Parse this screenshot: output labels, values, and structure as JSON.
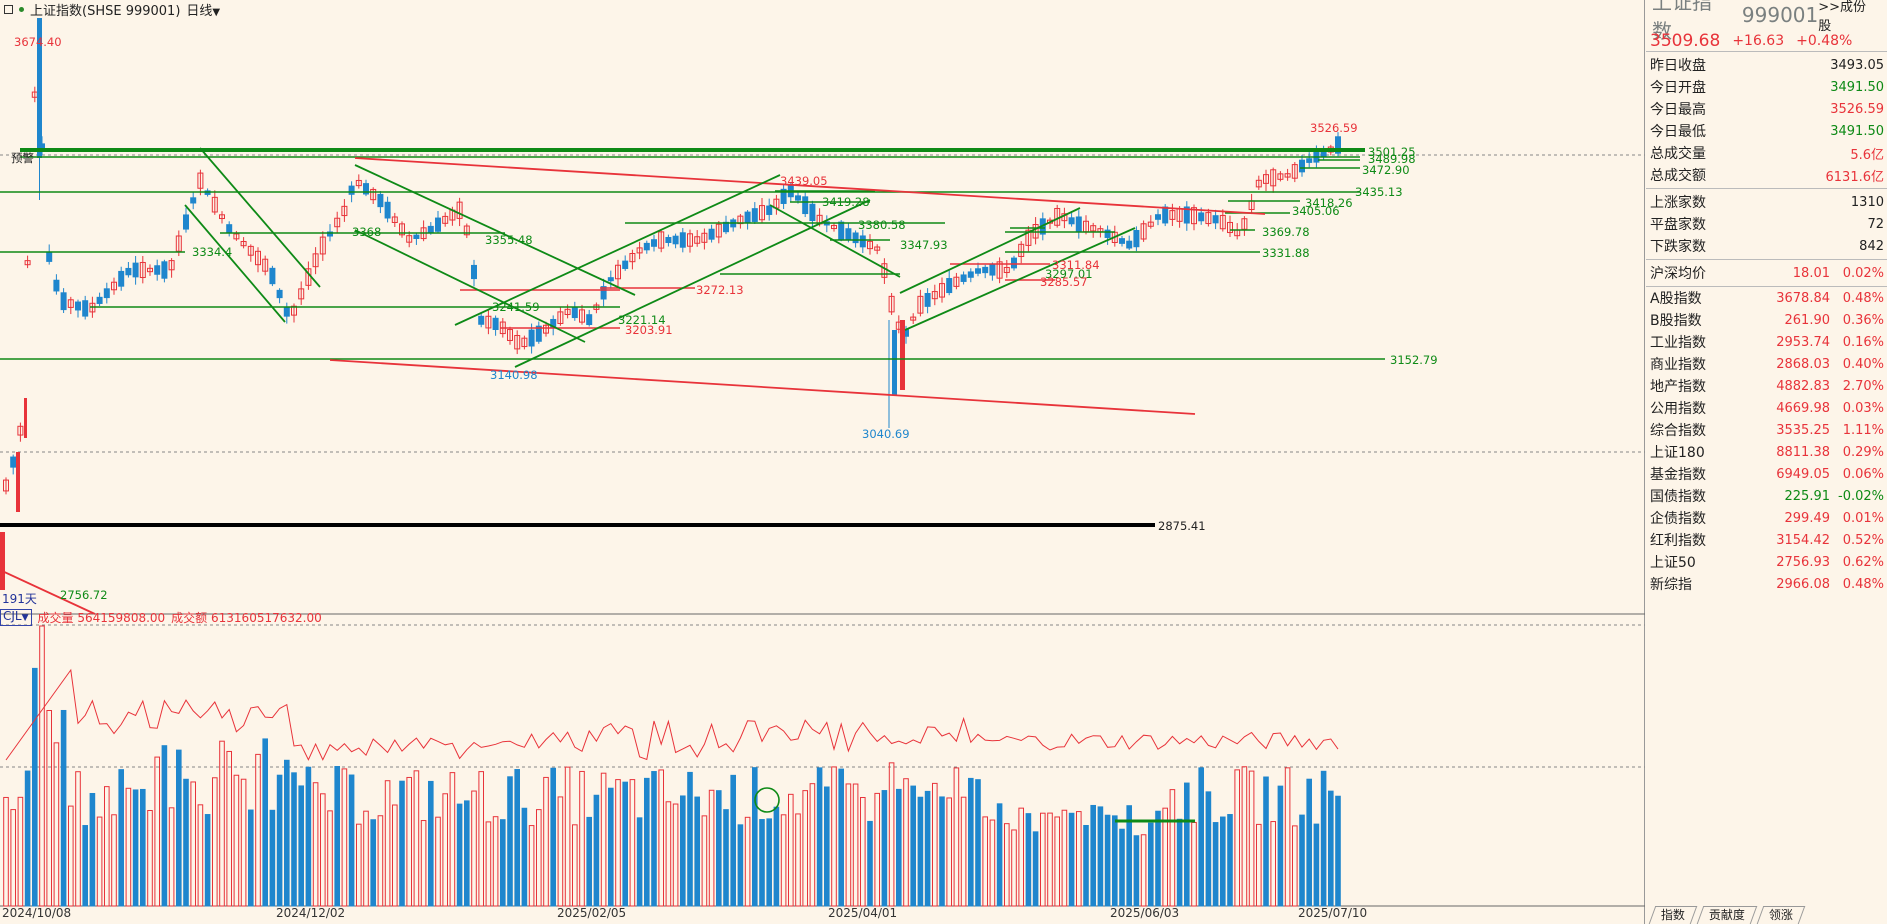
{
  "header": {
    "title": "上证指数(SHSE 999001)",
    "period": "日线"
  },
  "colors": {
    "up": "#e8333a",
    "down": "#1f86cd",
    "support": "#0e8a16",
    "resist": "#e8333a",
    "bg": "#fdf5e9"
  },
  "price_levels": [
    {
      "label": "3674.40",
      "color": "#e8333a"
    },
    {
      "label": "3501.25",
      "color": "#0e8a16"
    },
    {
      "label": "3489.98",
      "color": "#0e8a16"
    },
    {
      "label": "3472.90",
      "color": "#0e8a16"
    },
    {
      "label": "3435.13",
      "color": "#0e8a16"
    },
    {
      "label": "3439.05",
      "color": "#e8333a"
    },
    {
      "label": "3419.28",
      "color": "#0e8a16"
    },
    {
      "label": "3418.26",
      "color": "#0e8a16"
    },
    {
      "label": "3405.06",
      "color": "#0e8a16"
    },
    {
      "label": "3380.58",
      "color": "#0e8a16"
    },
    {
      "label": "3369.78",
      "color": "#0e8a16"
    },
    {
      "label": "3368",
      "color": "#0e8a16"
    },
    {
      "label": "3355.48",
      "color": "#0e8a16"
    },
    {
      "label": "3347.93",
      "color": "#0e8a16"
    },
    {
      "label": "3334.4",
      "color": "#0e8a16"
    },
    {
      "label": "3331.88",
      "color": "#0e8a16"
    },
    {
      "label": "3311.84",
      "color": "#e8333a"
    },
    {
      "label": "3297.01",
      "color": "#0e8a16"
    },
    {
      "label": "3285.57",
      "color": "#e8333a"
    },
    {
      "label": "3272.13",
      "color": "#e8333a"
    },
    {
      "label": "3241.59",
      "color": "#0e8a16"
    },
    {
      "label": "3221.14",
      "color": "#0e8a16"
    },
    {
      "label": "3203.91",
      "color": "#e8333a"
    },
    {
      "label": "3152.79",
      "color": "#0e8a16"
    },
    {
      "label": "3140.98",
      "color": "#1f86cd"
    },
    {
      "label": "3040.69",
      "color": "#1f86cd"
    },
    {
      "label": "2875.41",
      "color": "#222222"
    },
    {
      "label": "2756.72",
      "color": "#0e8a16"
    },
    {
      "label": "3526.59",
      "color": "#e8333a"
    }
  ],
  "preset_label": "预警",
  "days_badge": "191天",
  "volume": {
    "indicator": "CJL",
    "vol_label": "成交量",
    "vol_value": "564159808.00",
    "amt_label": "成交额",
    "amt_value": "613160517632.00"
  },
  "dates": [
    "2024/10/08",
    "2024/12/02",
    "2025/02/05",
    "2025/04/01",
    "2025/06/03",
    "2025/07/10"
  ],
  "side": {
    "name": "上证指数",
    "code": "999001",
    "config": ">>成份股",
    "price": "3509.68",
    "change": "+16.63",
    "change_pct": "+0.48%",
    "stats": [
      {
        "label": "昨日收盘",
        "value": "3493.05",
        "color": "#222222"
      },
      {
        "label": "今日开盘",
        "value": "3491.50",
        "color": "#0e8a16"
      },
      {
        "label": "今日最高",
        "value": "3526.59",
        "color": "#e8333a"
      },
      {
        "label": "今日最低",
        "value": "3491.50",
        "color": "#0e8a16"
      },
      {
        "label": "总成交量",
        "value": "5.6亿",
        "color": "#e8333a"
      },
      {
        "label": "总成交额",
        "value": "6131.6亿",
        "color": "#e8333a"
      }
    ],
    "breadth": [
      {
        "label": "上涨家数",
        "value": "1310"
      },
      {
        "label": "平盘家数",
        "value": "72"
      },
      {
        "label": "下跌家数",
        "value": "842"
      }
    ],
    "avg": {
      "label": "沪深均价",
      "price": "18.01",
      "pct": "0.02%"
    },
    "indices": [
      {
        "name": "A股指数",
        "price": "3678.84",
        "pct": "0.48%",
        "up": true
      },
      {
        "name": "B股指数",
        "price": "261.90",
        "pct": "0.36%",
        "up": true
      },
      {
        "name": "工业指数",
        "price": "2953.74",
        "pct": "0.16%",
        "up": true
      },
      {
        "name": "商业指数",
        "price": "2868.03",
        "pct": "0.40%",
        "up": true
      },
      {
        "name": "地产指数",
        "price": "4882.83",
        "pct": "2.70%",
        "up": true
      },
      {
        "name": "公用指数",
        "price": "4669.98",
        "pct": "0.03%",
        "up": true
      },
      {
        "name": "综合指数",
        "price": "3535.25",
        "pct": "1.11%",
        "up": true
      },
      {
        "name": "上证180",
        "price": "8811.38",
        "pct": "0.29%",
        "up": true
      },
      {
        "name": "基金指数",
        "price": "6949.05",
        "pct": "0.06%",
        "up": true
      },
      {
        "name": "国债指数",
        "price": "225.91",
        "pct": "-0.02%",
        "up": false
      },
      {
        "name": "企债指数",
        "price": "299.49",
        "pct": "0.01%",
        "up": true
      },
      {
        "name": "红利指数",
        "price": "3154.42",
        "pct": "0.52%",
        "up": true
      },
      {
        "name": "上证50",
        "price": "2756.93",
        "pct": "0.62%",
        "up": true
      },
      {
        "name": "新综指",
        "price": "2966.08",
        "pct": "0.48%",
        "up": true
      }
    ],
    "tabs": [
      "指数",
      "贡献度",
      "领涨"
    ]
  }
}
